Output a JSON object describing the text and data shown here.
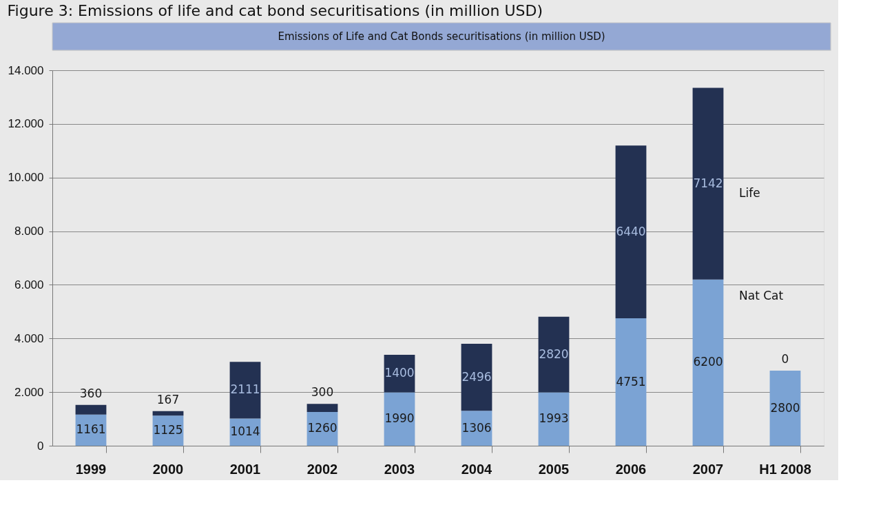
{
  "chart_data": {
    "type": "bar",
    "stacked": true,
    "title": "Figure 3: Emissions of life and cat bond securitisations (in million USD)",
    "subtitle": "Emissions  of Life and Cat Bonds securitisations (in million USD)",
    "categories": [
      "1999",
      "2000",
      "2001",
      "2002",
      "2003",
      "2004",
      "2005",
      "2006",
      "2007",
      "H1 2008"
    ],
    "series": [
      {
        "name": "Nat Cat",
        "color": "#7ba3d4",
        "values": [
          1161,
          1125,
          1014,
          1260,
          1990,
          1306,
          1993,
          4751,
          6200,
          2800
        ]
      },
      {
        "name": "Life",
        "color": "#233152",
        "values": [
          360,
          167,
          2111,
          300,
          1400,
          2496,
          2820,
          6440,
          7142,
          0
        ]
      }
    ],
    "ylim": [
      0,
      14000
    ],
    "yticks": [
      {
        "value": 0,
        "label": "0"
      },
      {
        "value": 2000,
        "label": "2.000"
      },
      {
        "value": 4000,
        "label": "4.000"
      },
      {
        "value": 6000,
        "label": "6.000"
      },
      {
        "value": 8000,
        "label": "8.000"
      },
      {
        "value": 10000,
        "label": "10.000"
      },
      {
        "value": 12000,
        "label": "12.000"
      },
      {
        "value": 14000,
        "label": "14.000"
      }
    ],
    "grid": "y",
    "legend": false,
    "data_labels": true
  }
}
